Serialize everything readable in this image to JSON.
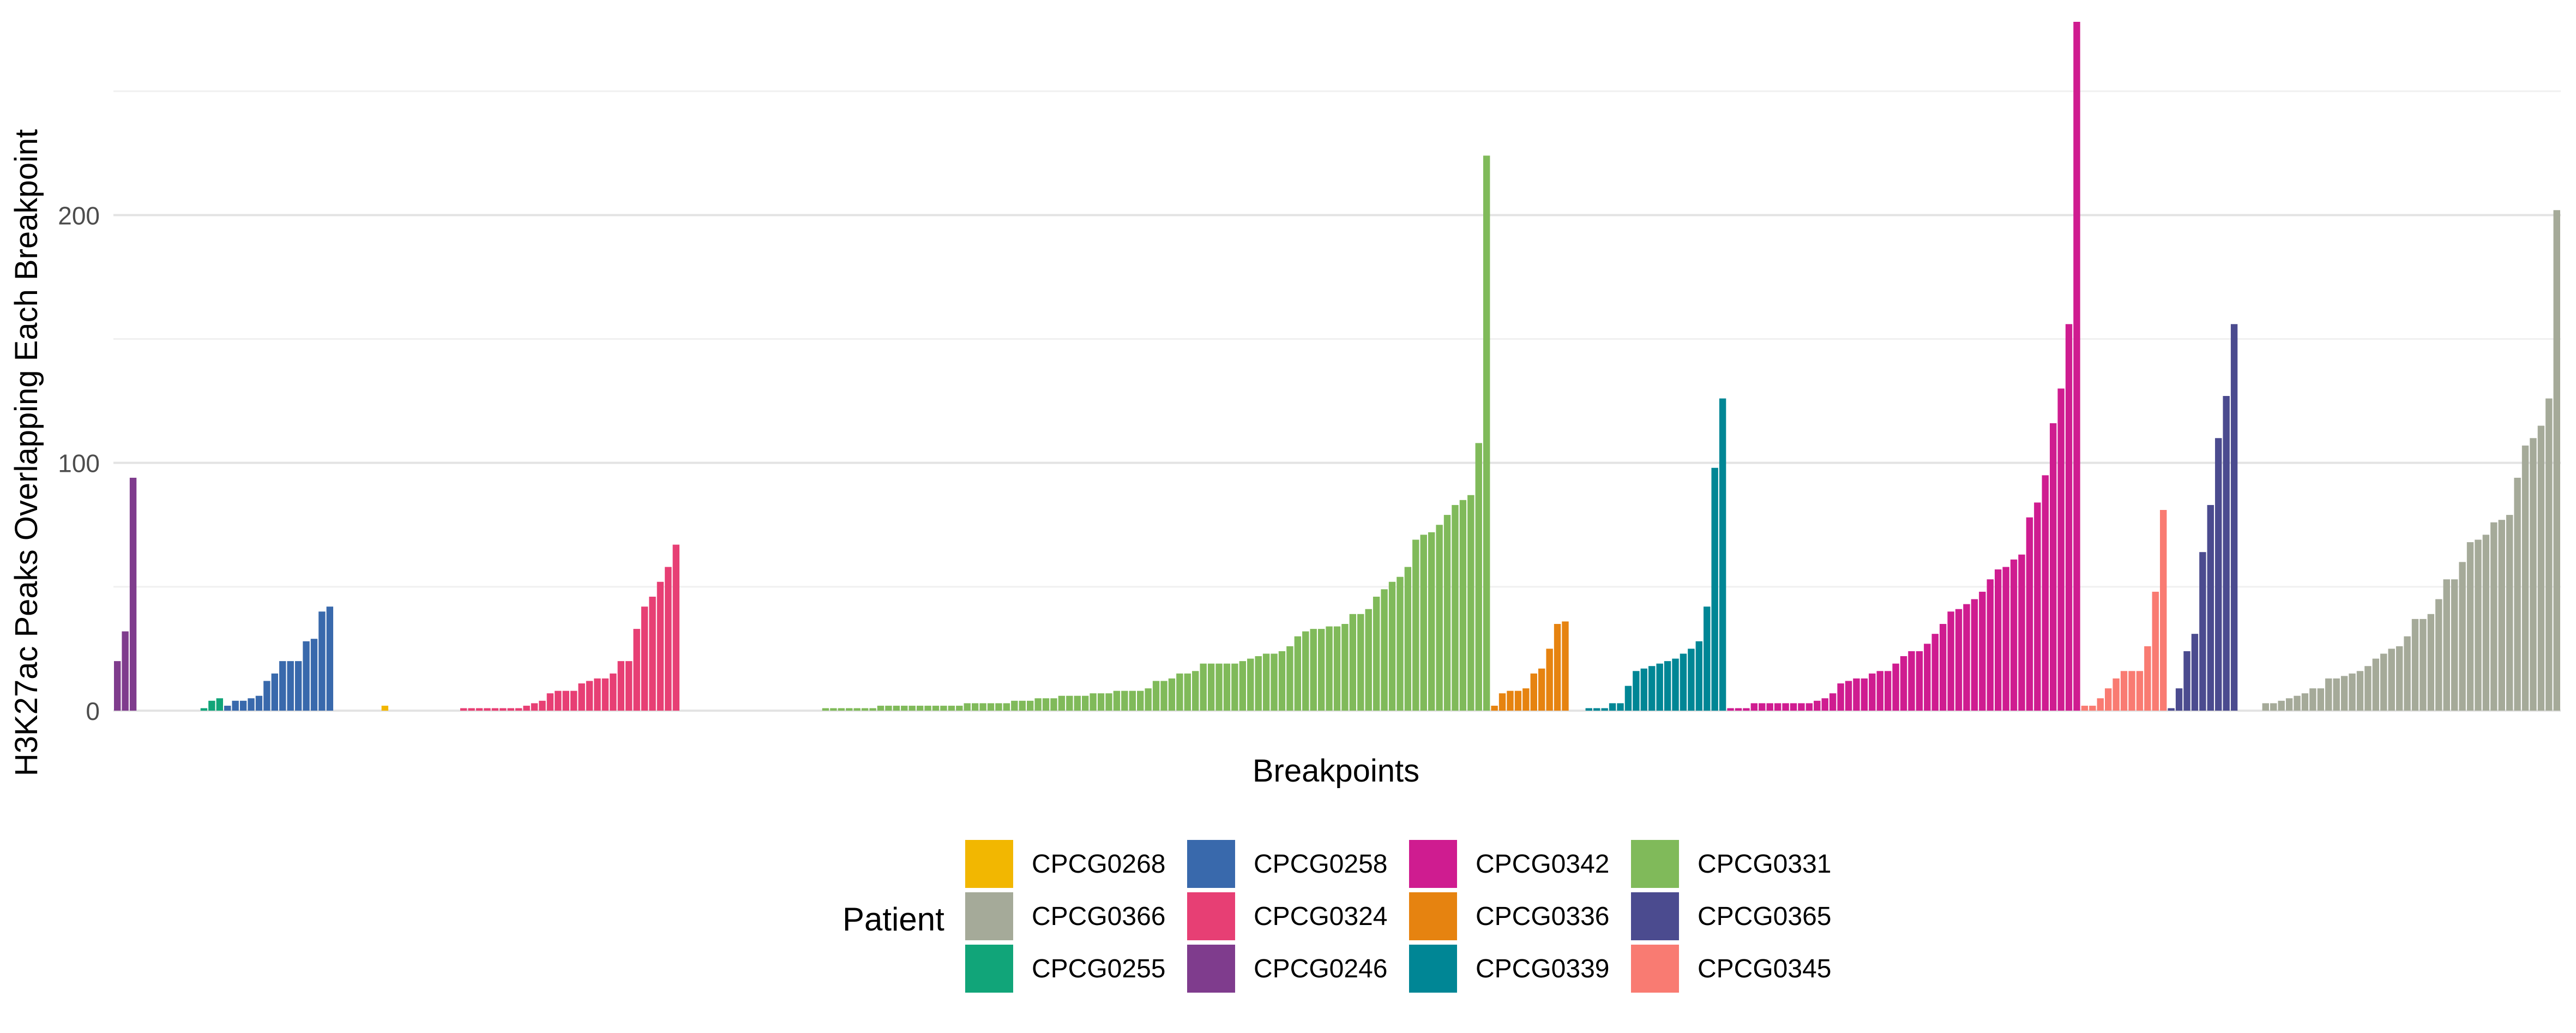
{
  "chart_data": {
    "type": "bar",
    "title": "",
    "xlabel": "Breakpoints",
    "ylabel": "H3K27ac Peaks Overlapping Each Breakpoint",
    "ylim": [
      0,
      278
    ],
    "yticks": [
      0,
      100,
      200
    ],
    "ytick_labels": [
      "0",
      "100",
      "200"
    ],
    "grid": "horizontal",
    "x_tick_labels": "none",
    "legend": {
      "title": "Patient",
      "position": "bottom",
      "columns": [
        [
          "CPCG0268",
          "CPCG0366",
          "CPCG0255"
        ],
        [
          "CPCG0258",
          "CPCG0324",
          "CPCG0246"
        ],
        [
          "CPCG0342",
          "CPCG0336",
          "CPCG0339"
        ],
        [
          "CPCG0331",
          "CPCG0365",
          "CPCG0345"
        ]
      ]
    },
    "series": [
      {
        "name": "CPCG0246",
        "color": "#7F3C8D",
        "values": [
          20,
          32,
          94
        ]
      },
      {
        "name": "CPCG0255",
        "color": "#11A579",
        "values": [
          0,
          0,
          0,
          0,
          0,
          0,
          0,
          0,
          1,
          4,
          5
        ]
      },
      {
        "name": "CPCG0258",
        "color": "#3969AC",
        "values": [
          2,
          4,
          4,
          5,
          6,
          12,
          15,
          20,
          20,
          20,
          28,
          29,
          40,
          42
        ]
      },
      {
        "name": "CPCG0268",
        "color": "#F2B701",
        "values": [
          0,
          0,
          0,
          0,
          0,
          0,
          2
        ]
      },
      {
        "name": "CPCG0324",
        "color": "#E73F74",
        "values": [
          0,
          0,
          0,
          0,
          0,
          0,
          0,
          0,
          0,
          1,
          1,
          1,
          1,
          1,
          1,
          1,
          1,
          2,
          3,
          4,
          7,
          8,
          8,
          8,
          11,
          12,
          13,
          13,
          15,
          20,
          20,
          33,
          42,
          46,
          52,
          58,
          67
        ]
      },
      {
        "name": "CPCG0331",
        "color": "#80BA5A",
        "values": [
          0,
          0,
          0,
          0,
          0,
          0,
          0,
          0,
          0,
          0,
          0,
          0,
          0,
          0,
          0,
          0,
          0,
          0,
          1,
          1,
          1,
          1,
          1,
          1,
          1,
          2,
          2,
          2,
          2,
          2,
          2,
          2,
          2,
          2,
          2,
          2,
          3,
          3,
          3,
          3,
          3,
          3,
          4,
          4,
          4,
          5,
          5,
          5,
          6,
          6,
          6,
          6,
          7,
          7,
          7,
          8,
          8,
          8,
          8,
          9,
          12,
          12,
          13,
          15,
          15,
          16,
          19,
          19,
          19,
          19,
          19,
          20,
          21,
          22,
          23,
          23,
          24,
          26,
          30,
          32,
          33,
          33,
          34,
          34,
          35,
          39,
          39,
          41,
          46,
          49,
          52,
          54,
          58,
          69,
          71,
          72,
          75,
          79,
          83,
          85,
          87,
          108,
          224
        ]
      },
      {
        "name": "CPCG0336",
        "color": "#E68310",
        "values": [
          2,
          7,
          8,
          8,
          9,
          15,
          17,
          25,
          35,
          36
        ]
      },
      {
        "name": "CPCG0339",
        "color": "#008695",
        "values": [
          0,
          0,
          1,
          1,
          1,
          3,
          3,
          10,
          16,
          17,
          18,
          19,
          20,
          21,
          23,
          25,
          28,
          42,
          98,
          126
        ]
      },
      {
        "name": "CPCG0342",
        "color": "#CF1C90",
        "values": [
          1,
          1,
          1,
          3,
          3,
          3,
          3,
          3,
          3,
          3,
          3,
          4,
          5,
          7,
          11,
          12,
          13,
          13,
          15,
          16,
          16,
          19,
          22,
          24,
          24,
          27,
          31,
          35,
          40,
          41,
          43,
          45,
          48,
          53,
          57,
          58,
          61,
          63,
          78,
          84,
          95,
          116,
          130,
          156,
          278
        ]
      },
      {
        "name": "CPCG0345",
        "color": "#F97B72",
        "values": [
          2,
          2,
          5,
          9,
          13,
          16,
          16,
          16,
          26,
          48,
          81
        ]
      },
      {
        "name": "CPCG0365",
        "color": "#4B4B8F",
        "values": [
          1,
          9,
          24,
          31,
          64,
          83,
          110,
          127,
          156
        ]
      },
      {
        "name": "CPCG0366",
        "color": "#A5AA99",
        "values": [
          0,
          0,
          0,
          3,
          3,
          4,
          5,
          6,
          7,
          9,
          9,
          13,
          13,
          14,
          15,
          16,
          18,
          21,
          23,
          25,
          26,
          30,
          37,
          37,
          39,
          45,
          53,
          53,
          60,
          68,
          69,
          71,
          76,
          77,
          79,
          94,
          107,
          110,
          115,
          126,
          202
        ]
      }
    ]
  }
}
